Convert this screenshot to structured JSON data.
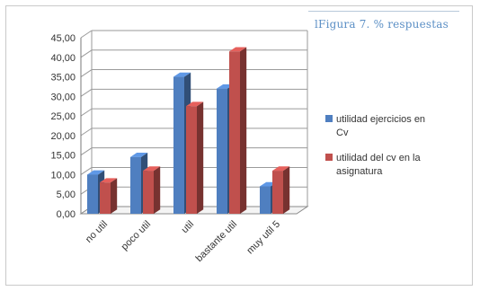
{
  "caption": "lFigura 7. % respuestas",
  "chart_data": {
    "type": "bar",
    "title": "",
    "xlabel": "",
    "ylabel": "",
    "ylim": [
      0,
      45
    ],
    "yticks": [
      "0,00",
      "5,00",
      "10,00",
      "15,00",
      "20,00",
      "25,00",
      "30,00",
      "35,00",
      "40,00",
      "45,00"
    ],
    "categories": [
      "no util",
      "poco util",
      "util",
      "bastante util",
      "muy util 5"
    ],
    "grid": true,
    "legend_position": "right",
    "series": [
      {
        "name": "utilidad ejercicios en Cv",
        "color": "#4f7fc0",
        "values": [
          10,
          14.5,
          35,
          32,
          7
        ]
      },
      {
        "name": "utilidad del cv en la asignatura",
        "color": "#c0504d",
        "values": [
          8,
          11,
          27.5,
          41.5,
          11
        ]
      }
    ]
  }
}
